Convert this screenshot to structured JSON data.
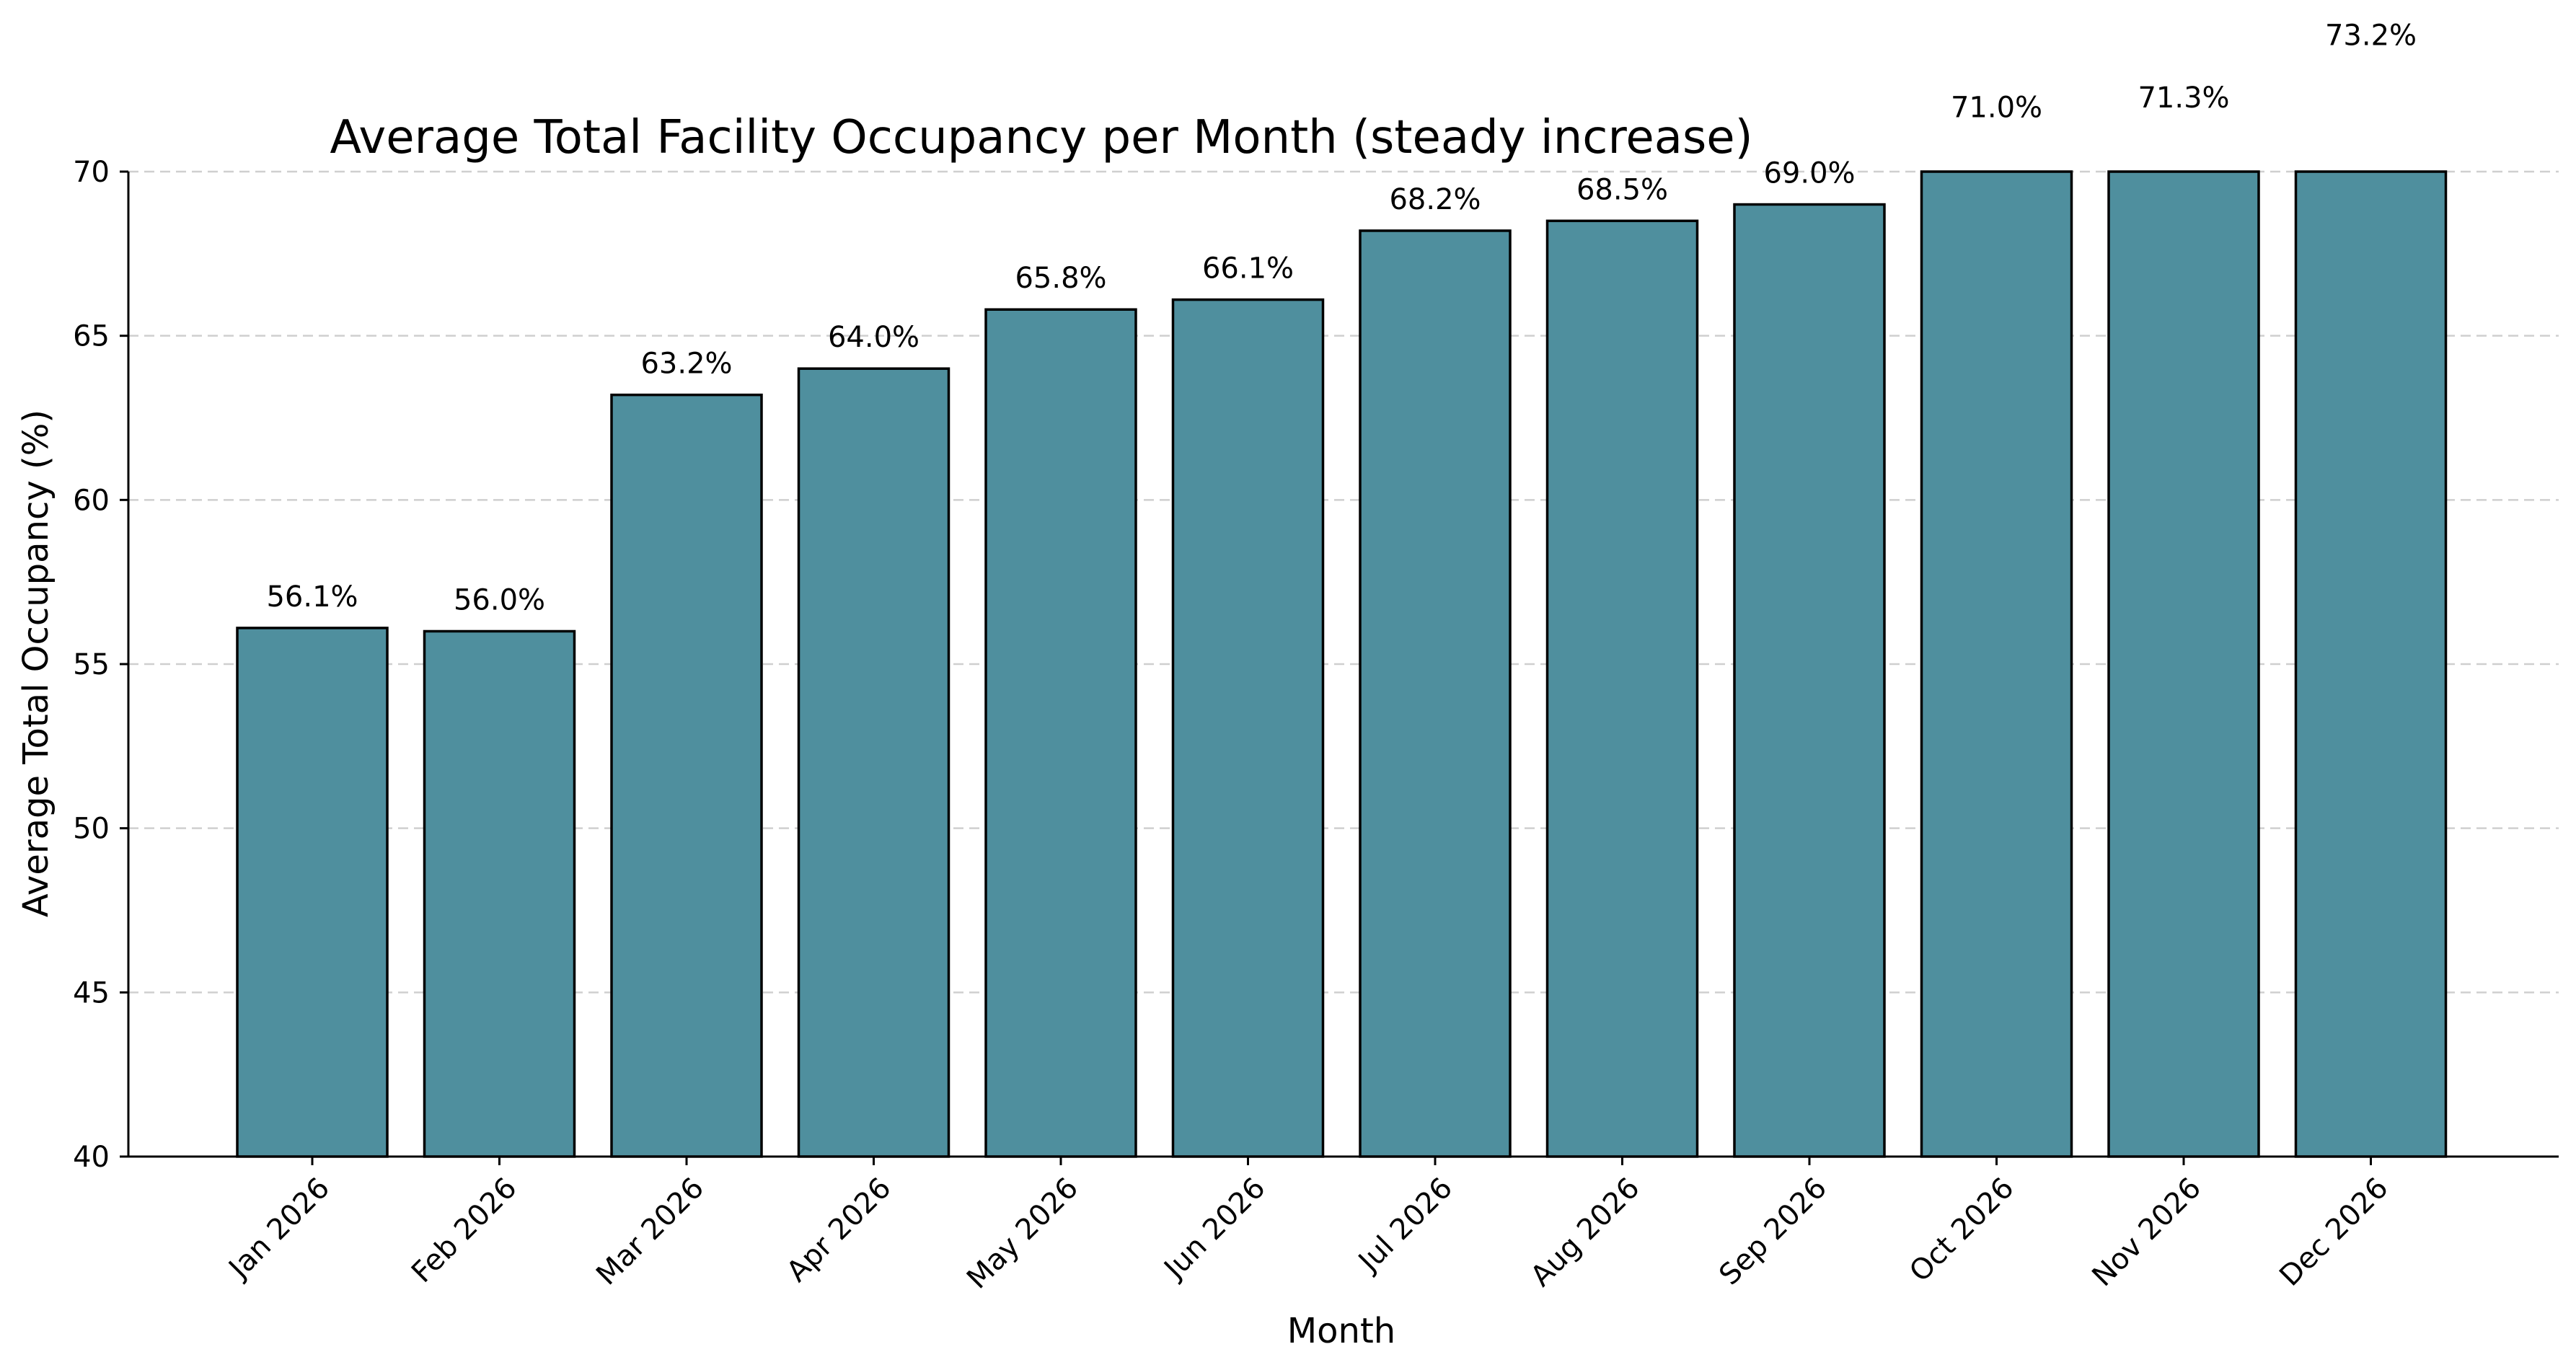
{
  "chart_data": {
    "type": "bar",
    "title": "Average Total Facility Occupancy per Month (steady increase)",
    "xlabel": "Month",
    "ylabel": "Average Total Occupancy (%)",
    "ylim": [
      40,
      70
    ],
    "yticks": [
      40,
      45,
      50,
      55,
      60,
      65,
      70
    ],
    "grid": "y, dashed",
    "bar_color": "#4f8f9e",
    "categories": [
      "Jan 2026",
      "Feb 2026",
      "Mar 2026",
      "Apr 2026",
      "May 2026",
      "Jun 2026",
      "Jul 2026",
      "Aug 2026",
      "Sep 2026",
      "Oct 2026",
      "Nov 2026",
      "Dec 2026"
    ],
    "values": [
      56.1,
      56.0,
      63.2,
      64.0,
      65.8,
      66.1,
      68.2,
      68.5,
      69.0,
      71.0,
      71.3,
      73.2
    ],
    "data_labels": [
      "56.1%",
      "56.0%",
      "63.2%",
      "64.0%",
      "65.8%",
      "66.1%",
      "68.2%",
      "68.5%",
      "69.0%",
      "71.0%",
      "71.3%",
      "73.2%"
    ]
  }
}
